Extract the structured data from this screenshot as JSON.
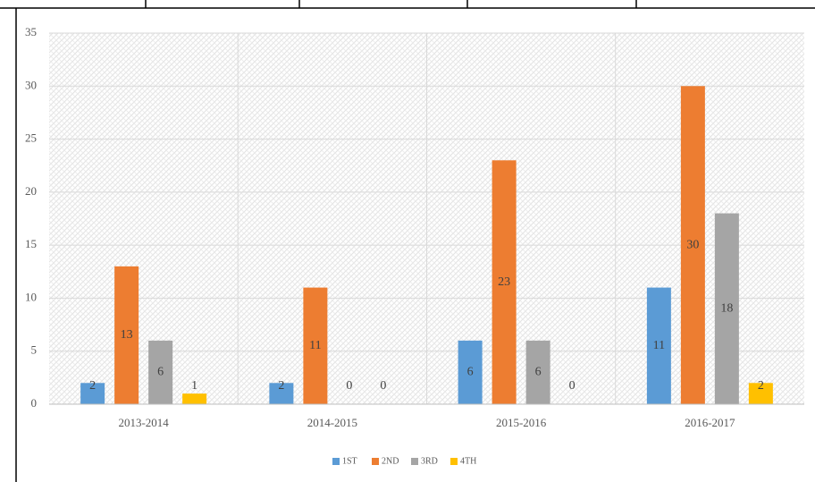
{
  "chart_data": {
    "type": "bar",
    "categories": [
      "2013-2014",
      "2014-2015",
      "2015-2016",
      "2016-2017"
    ],
    "series": [
      {
        "name": "1ST",
        "color": "#5b9bd5",
        "values": [
          2,
          2,
          6,
          11
        ]
      },
      {
        "name": "2ND",
        "color": "#ed7d31",
        "values": [
          13,
          11,
          23,
          30
        ]
      },
      {
        "name": "3RD",
        "color": "#a5a5a5",
        "values": [
          6,
          0,
          6,
          18
        ]
      },
      {
        "name": "4TH",
        "color": "#ffc000",
        "values": [
          1,
          0,
          0,
          2
        ]
      }
    ],
    "ylim": [
      0,
      35
    ],
    "yticks": [
      0,
      5,
      10,
      15,
      20,
      25,
      30,
      35
    ],
    "grid": true,
    "legend": "bottom"
  }
}
